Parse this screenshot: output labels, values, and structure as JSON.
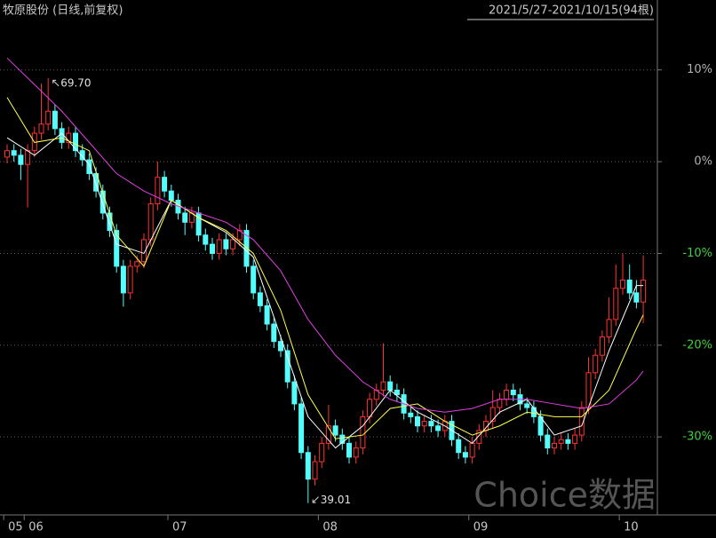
{
  "chart_data": {
    "type": "candlestick",
    "title": "牧原股份 (日线,前复权)",
    "subtitle": "2021/5/27-2021/10/15(94根)",
    "watermark": "Choice数据",
    "categories": [
      "05",
      null,
      null,
      "06",
      null,
      null,
      null,
      null,
      null,
      null,
      null,
      null,
      null,
      null,
      null,
      null,
      null,
      null,
      null,
      null,
      null,
      null,
      null,
      null,
      "07",
      null,
      null,
      null,
      null,
      null,
      null,
      null,
      null,
      null,
      null,
      null,
      null,
      null,
      null,
      null,
      null,
      null,
      null,
      null,
      null,
      null,
      "08",
      null,
      null,
      null,
      null,
      null,
      null,
      null,
      null,
      null,
      null,
      null,
      null,
      null,
      null,
      null,
      null,
      null,
      null,
      null,
      null,
      null,
      "09",
      null,
      null,
      null,
      null,
      null,
      null,
      null,
      null,
      null,
      null,
      null,
      null,
      null,
      null,
      null,
      null,
      null,
      null,
      null,
      null,
      null,
      "10",
      null,
      null,
      null
    ],
    "open": [
      0.5,
      1.2,
      0.7,
      -0.3,
      1.2,
      3.1,
      4.1,
      5.5,
      3.6,
      2.1,
      3.1,
      1.2,
      0.2,
      -1.3,
      -3.2,
      -5.6,
      -7.5,
      -11.4,
      -14.3,
      -11.4,
      -10.9,
      -8.5,
      -4.6,
      -1.7,
      -3.2,
      -4.2,
      -5.6,
      -6.6,
      -5.6,
      -8.0,
      -9.0,
      -10.0,
      -8.5,
      -9.5,
      -8.5,
      -7.5,
      -11.4,
      -14.3,
      -15.7,
      -17.7,
      -19.6,
      -20.6,
      -24.0,
      -26.4,
      -31.7,
      -34.6,
      -32.7,
      -30.7,
      -28.8,
      -29.8,
      -30.7,
      -32.2,
      -31.2,
      -27.8,
      -25.9,
      -24.9,
      -24.0,
      -24.9,
      -25.4,
      -27.4,
      -27.8,
      -28.8,
      -28.3,
      -28.8,
      -29.3,
      -28.3,
      -30.3,
      -31.7,
      -32.2,
      -30.7,
      -29.3,
      -28.3,
      -26.8,
      -25.9,
      -24.9,
      -25.4,
      -26.4,
      -26.8,
      -27.8,
      -29.8,
      -31.2,
      -30.7,
      -30.3,
      -30.7,
      -29.8,
      -26.8,
      -23.0,
      -21.1,
      -19.1,
      -17.2,
      -13.8,
      -12.9,
      -14.3,
      -15.3
    ],
    "close": [
      1.2,
      0.7,
      -0.3,
      1.2,
      3.1,
      4.1,
      5.5,
      3.6,
      2.1,
      3.1,
      1.2,
      0.2,
      -1.3,
      -3.2,
      -5.6,
      -7.5,
      -11.4,
      -14.3,
      -11.4,
      -10.9,
      -8.5,
      -4.6,
      -1.7,
      -3.2,
      -4.2,
      -5.6,
      -6.6,
      -5.6,
      -8.0,
      -9.0,
      -10.0,
      -8.5,
      -9.5,
      -8.5,
      -7.5,
      -11.4,
      -14.3,
      -15.7,
      -17.7,
      -19.6,
      -20.6,
      -24.0,
      -26.4,
      -31.7,
      -34.6,
      -32.7,
      -30.7,
      -28.8,
      -29.8,
      -30.7,
      -32.2,
      -31.2,
      -27.8,
      -25.9,
      -24.9,
      -24.0,
      -24.9,
      -25.4,
      -27.4,
      -27.8,
      -28.8,
      -28.3,
      -28.8,
      -29.3,
      -28.3,
      -30.3,
      -31.7,
      -32.2,
      -30.7,
      -29.3,
      -28.3,
      -26.8,
      -25.9,
      -24.9,
      -25.4,
      -26.4,
      -26.8,
      -27.8,
      -29.8,
      -31.2,
      -30.7,
      -30.3,
      -30.7,
      -29.8,
      -26.8,
      -23.0,
      -21.1,
      -19.1,
      -17.2,
      -13.8,
      -12.9,
      -14.3,
      -15.3,
      -12.9
    ],
    "high": [
      1.9,
      1.9,
      1.4,
      1.9,
      3.8,
      8.5,
      9.1,
      6.2,
      4.3,
      3.8,
      3.8,
      1.9,
      0.9,
      -0.6,
      -2.5,
      -4.9,
      -6.8,
      -10.7,
      -10.7,
      -10.2,
      -7.8,
      -3.9,
      0.0,
      -1.0,
      -2.5,
      -3.5,
      -4.9,
      -4.9,
      -4.9,
      -7.3,
      -8.3,
      -7.8,
      -7.8,
      -7.8,
      -6.8,
      -6.8,
      -10.7,
      -13.6,
      -15.0,
      -17.0,
      -18.9,
      -19.9,
      -23.3,
      -25.7,
      -31.0,
      -32.0,
      -30.0,
      -26.5,
      -28.1,
      -29.1,
      -30.0,
      -30.5,
      -27.1,
      -25.2,
      -24.2,
      -19.8,
      -23.3,
      -24.2,
      -24.7,
      -26.7,
      -27.1,
      -27.6,
      -27.6,
      -28.1,
      -27.6,
      -27.6,
      -29.6,
      -31.0,
      -30.0,
      -28.6,
      -27.6,
      -24.9,
      -25.2,
      -24.2,
      -24.2,
      -24.7,
      -25.7,
      -26.1,
      -27.1,
      -29.1,
      -30.0,
      -29.6,
      -29.6,
      -29.1,
      -26.1,
      -21.3,
      -20.4,
      -18.4,
      -14.8,
      -11.2,
      -10.0,
      -11.2,
      -12.9,
      -10.2
    ],
    "low": [
      -0.2,
      0.0,
      -2.0,
      -5.0,
      0.5,
      2.4,
      3.4,
      2.9,
      1.4,
      1.4,
      0.5,
      -0.5,
      -2.0,
      -3.9,
      -6.3,
      -8.2,
      -12.1,
      -15.8,
      -15.0,
      -12.1,
      -11.6,
      -9.2,
      -5.3,
      -3.9,
      -4.9,
      -6.3,
      -8.0,
      -7.3,
      -8.7,
      -9.7,
      -10.7,
      -10.7,
      -10.2,
      -10.2,
      -9.2,
      -12.1,
      -15.0,
      -16.4,
      -18.4,
      -20.3,
      -21.3,
      -24.7,
      -27.1,
      -32.4,
      -37.2,
      -35.3,
      -33.4,
      -31.4,
      -30.5,
      -31.4,
      -32.9,
      -32.9,
      -31.9,
      -28.5,
      -26.6,
      -25.6,
      -25.6,
      -26.1,
      -28.1,
      -28.5,
      -29.5,
      -29.5,
      -29.5,
      -30.0,
      -30.0,
      -31.0,
      -32.4,
      -32.9,
      -32.9,
      -31.4,
      -30.0,
      -29.0,
      -27.5,
      -26.6,
      -26.1,
      -27.1,
      -27.5,
      -28.5,
      -30.5,
      -31.9,
      -31.9,
      -31.4,
      -31.4,
      -31.4,
      -30.5,
      -27.5,
      -23.7,
      -21.8,
      -19.8,
      -17.9,
      -14.5,
      -15.0,
      -16.0,
      -17.6
    ],
    "up_color": "#ff3232",
    "down_color": "#54fcfc",
    "lines": [
      {
        "color": "#ffffff",
        "x": [
          0,
          4,
          8,
          12,
          16,
          20,
          24,
          28,
          32,
          36,
          40,
          44,
          48,
          52,
          56,
          60,
          64,
          68,
          72,
          76,
          80,
          84,
          88,
          92,
          93
        ],
        "values": [
          2.6,
          0.7,
          3.1,
          -0.3,
          -9.0,
          -10.0,
          -4.2,
          -6.1,
          -7.7,
          -10.4,
          -19.1,
          -27.8,
          -31.2,
          -28.8,
          -24.9,
          -27.3,
          -28.8,
          -30.7,
          -27.3,
          -25.9,
          -29.8,
          -28.8,
          -20.6,
          -13.5,
          -13.5
        ]
      },
      {
        "color": "#ffff4c",
        "x": [
          0,
          4,
          8,
          12,
          16,
          20,
          24,
          28,
          32,
          36,
          40,
          44,
          48,
          52,
          56,
          60,
          64,
          68,
          72,
          76,
          80,
          84,
          88,
          92,
          93
        ],
        "values": [
          7.0,
          2.1,
          2.6,
          1.2,
          -8.0,
          -11.4,
          -4.2,
          -6.1,
          -7.5,
          -10.0,
          -16.2,
          -25.4,
          -30.2,
          -29.8,
          -26.9,
          -26.4,
          -28.3,
          -29.8,
          -28.8,
          -27.3,
          -27.8,
          -27.8,
          -24.9,
          -18.2,
          -16.7
        ]
      },
      {
        "color": "#e040e0",
        "x": [
          0,
          4,
          8,
          12,
          16,
          20,
          24,
          28,
          32,
          36,
          40,
          44,
          48,
          52,
          56,
          60,
          64,
          68,
          72,
          76,
          80,
          84,
          88,
          92,
          93
        ],
        "values": [
          11.3,
          8.4,
          5.5,
          2.1,
          -1.3,
          -3.2,
          -4.6,
          -5.6,
          -6.6,
          -8.5,
          -11.9,
          -17.2,
          -21.1,
          -24.0,
          -25.9,
          -26.9,
          -27.3,
          -26.9,
          -25.9,
          -25.9,
          -26.4,
          -26.9,
          -26.4,
          -23.8,
          -22.8
        ]
      }
    ],
    "annotations": [
      {
        "text": "69.70"
      },
      {
        "text": "39.01"
      }
    ],
    "ylim": [
      -38.5,
      15.2
    ],
    "yticks": [
      {
        "value": 10,
        "label": "10%"
      },
      {
        "value": 0,
        "label": "0%"
      },
      {
        "value": -10,
        "label": "-10%"
      },
      {
        "value": -20,
        "label": "-20%"
      },
      {
        "value": -30,
        "label": "-30%"
      }
    ],
    "grid": true
  }
}
